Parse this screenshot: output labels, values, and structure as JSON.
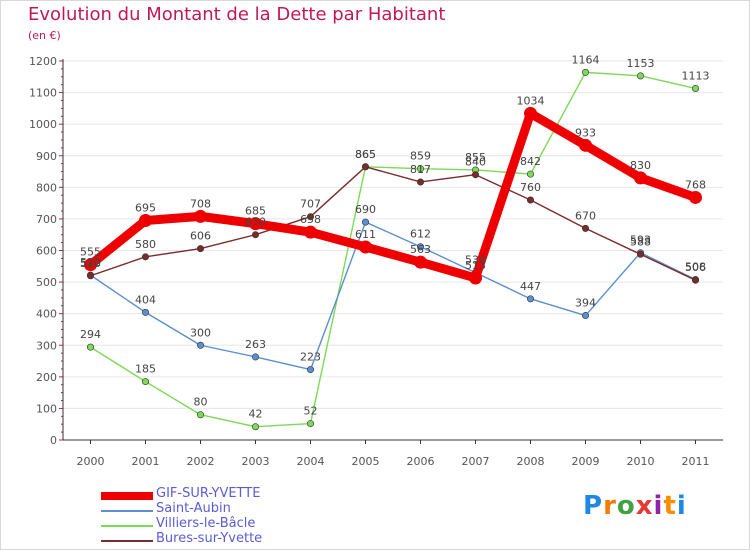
{
  "colors": {
    "title": "#c2185b",
    "axis": "#555555",
    "grid": "#e6e6e6"
  },
  "chart_data": {
    "type": "line",
    "title": "Evolution du Montant de la Dette par Habitant",
    "unit_label": "(en €)",
    "ylim": [
      0,
      1200
    ],
    "yticks": [
      0,
      100,
      200,
      300,
      400,
      500,
      600,
      700,
      800,
      900,
      1000,
      1100,
      1200
    ],
    "grid": true,
    "legend_position": "bottom-left",
    "x": [
      "2000",
      "2001",
      "2002",
      "2003",
      "2004",
      "2005",
      "2006",
      "2007",
      "2008",
      "2009",
      "2010",
      "2011"
    ],
    "series": [
      {
        "name": "GIF-SUR-YVETTE",
        "color": "#ee0000",
        "values": [
          555,
          695,
          708,
          685,
          658,
          611,
          563,
          513,
          1034,
          933,
          830,
          768
        ]
      },
      {
        "name": "Saint-Aubin",
        "color": "#5b8fd0",
        "values": [
          522,
          404,
          300,
          263,
          223,
          690,
          612,
          530,
          447,
          394,
          593,
          508
        ]
      },
      {
        "name": "Villiers-le-Bâcle",
        "color": "#7ed957",
        "values": [
          294,
          185,
          80,
          42,
          52,
          865,
          859,
          855,
          842,
          1164,
          1153,
          1113
        ]
      },
      {
        "name": "Bures-sur-Yvette",
        "color": "#7a2b2b",
        "values": [
          520,
          580,
          606,
          650,
          707,
          865,
          817,
          840,
          760,
          670,
          588,
          506
        ]
      }
    ]
  },
  "logo": {
    "text": "Proxiti"
  }
}
